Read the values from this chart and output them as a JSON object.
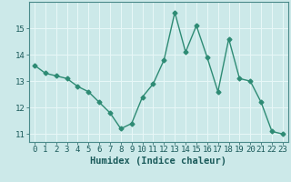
{
  "x": [
    0,
    1,
    2,
    3,
    4,
    5,
    6,
    7,
    8,
    9,
    10,
    11,
    12,
    13,
    14,
    15,
    16,
    17,
    18,
    19,
    20,
    21,
    22,
    23
  ],
  "y": [
    13.6,
    13.3,
    13.2,
    13.1,
    12.8,
    12.6,
    12.2,
    11.8,
    11.2,
    11.4,
    12.4,
    12.9,
    13.8,
    15.6,
    14.1,
    15.1,
    13.9,
    12.6,
    14.6,
    13.1,
    13.0,
    12.2,
    11.1,
    11.0
  ],
  "xlabel": "Humidex (Indice chaleur)",
  "xlim": [
    -0.5,
    23.5
  ],
  "ylim": [
    10.7,
    16.0
  ],
  "yticks": [
    11,
    12,
    13,
    14,
    15
  ],
  "xticks": [
    0,
    1,
    2,
    3,
    4,
    5,
    6,
    7,
    8,
    9,
    10,
    11,
    12,
    13,
    14,
    15,
    16,
    17,
    18,
    19,
    20,
    21,
    22,
    23
  ],
  "line_color": "#2e8b74",
  "marker": "D",
  "marker_size": 2.5,
  "bg_color": "#cce9e9",
  "grid_color": "#e8f8f8",
  "axis_color": "#4a8a8a",
  "label_color": "#1a5a5a",
  "font_size_ticks": 6.5,
  "font_size_xlabel": 7.5,
  "linewidth": 1.0
}
